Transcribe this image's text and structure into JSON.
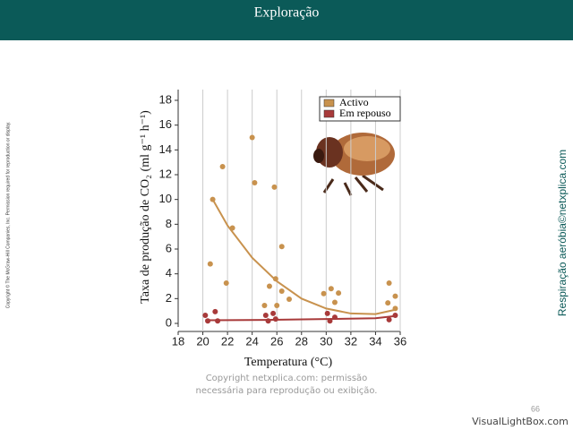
{
  "slide": {
    "title": "Exploração",
    "side_note": "Copyright © The McGraw-Hill Companies, Inc. Permission required for reproduction or display.",
    "side_credit": "Respiração aeróbia©netxplica.com",
    "footer": [
      "Copyright netxplica.com: permissão",
      "necessária para reprodução ou exibição."
    ],
    "page_number": "66",
    "watermark": "VisualLightBox.com"
  },
  "chart_data": {
    "type": "scatter",
    "xlabel": "Temperatura (°C)",
    "ylabel": "Taxa de produção de CO₂ (ml g⁻¹ h⁻¹)",
    "xlim": [
      18,
      36
    ],
    "xticks": [
      18,
      20,
      22,
      24,
      26,
      28,
      30,
      32,
      34,
      36
    ],
    "ylim": [
      0,
      18
    ],
    "yticks": [
      0,
      2,
      4,
      6,
      8,
      10,
      12,
      14,
      16,
      18
    ],
    "grid": "x",
    "legend": "upper right",
    "series": [
      {
        "name": "Activo",
        "color": "#c8924e",
        "x": [
          20.6,
          20.8,
          21.6,
          21.9,
          22.4,
          24.0,
          24.2,
          25.8,
          26.4,
          25.4,
          25.0,
          25.9,
          26.4,
          26.0,
          27.0,
          29.8,
          30.4,
          30.7,
          31.0,
          35.1,
          35.0,
          35.6,
          35.6
        ],
        "values": [
          4.8,
          10.0,
          12.65,
          3.25,
          7.7,
          15.0,
          11.35,
          11.0,
          6.2,
          3.0,
          1.45,
          3.6,
          2.6,
          1.45,
          1.95,
          2.4,
          2.8,
          1.7,
          2.45,
          3.25,
          1.65,
          2.2,
          1.2
        ],
        "fit": {
          "x": [
            20.8,
            22,
            24,
            26,
            28,
            30,
            32,
            34,
            35.6
          ],
          "values": [
            10,
            7.9,
            5.3,
            3.4,
            2.0,
            1.2,
            0.8,
            0.75,
            1.1
          ]
        }
      },
      {
        "name": "Em repouso",
        "color": "#a83a3a",
        "x": [
          20.2,
          20.4,
          21.0,
          21.2,
          25.1,
          25.3,
          25.7,
          25.9,
          30.1,
          30.3,
          30.7,
          35.1,
          35.6
        ],
        "values": [
          0.65,
          0.2,
          0.95,
          0.2,
          0.65,
          0.2,
          0.8,
          0.35,
          0.8,
          0.2,
          0.5,
          0.3,
          0.65
        ],
        "fit": {
          "x": [
            20.2,
            25,
            30,
            34,
            35.6
          ],
          "values": [
            0.25,
            0.28,
            0.35,
            0.42,
            0.6
          ]
        }
      }
    ]
  }
}
